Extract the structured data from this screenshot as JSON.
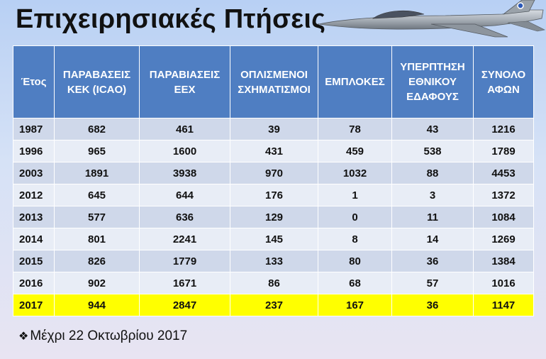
{
  "title": "Επιχειρησιακές Πτήσεις",
  "table": {
    "headers": [
      "Έτος",
      "ΠΑΡΑΒΑΣΕΙΣ ΚΕΚ (ICAO)",
      "ΠΑΡΑΒΙΑΣΕΙΣ ΕΕΧ",
      "ΟΠΛΙΣΜΕΝΟΙ ΣΧΗΜΑΤΙΣΜΟΙ",
      "ΕΜΠΛΟΚΕΣ",
      "ΥΠΕΡΠΤΗΣΗ ΕΘΝΙΚΟΥ ΕΔΑΦΟΥΣ",
      "ΣΥΝΟΛΟ ΑΦΩΝ"
    ],
    "rows": [
      [
        "1987",
        "682",
        "461",
        "39",
        "78",
        "43",
        "1216"
      ],
      [
        "1996",
        "965",
        "1600",
        "431",
        "459",
        "538",
        "1789"
      ],
      [
        "2003",
        "1891",
        "3938",
        "970",
        "1032",
        "88",
        "4453"
      ],
      [
        "2012",
        "645",
        "644",
        "176",
        "1",
        "3",
        "1372"
      ],
      [
        "2013",
        "577",
        "636",
        "129",
        "0",
        "11",
        "1084"
      ],
      [
        "2014",
        "801",
        "2241",
        "145",
        "8",
        "14",
        "1269"
      ],
      [
        "2015",
        "826",
        "1779",
        "133",
        "80",
        "36",
        "1384"
      ],
      [
        "2016",
        "902",
        "1671",
        "86",
        "68",
        "57",
        "1016"
      ],
      [
        "2017",
        "944",
        "2847",
        "237",
        "167",
        "36",
        "1147"
      ]
    ],
    "highlight_row": "2017",
    "highlight_color": "#ffff00",
    "header_color": "#4f7ec2",
    "row_colors": [
      "#cfd8ea",
      "#e8edf6"
    ]
  },
  "note": {
    "bullet": "❖",
    "text": "Μέχρι 22 Οκτωβρίου 2017"
  },
  "image": {
    "icon": "fighter-jet-icon"
  }
}
